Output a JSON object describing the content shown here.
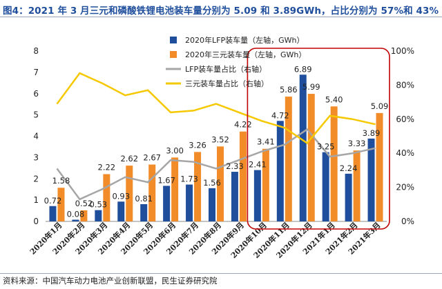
{
  "title": "图4：2021 年 3 月三元和磷酸铁锂电池装车量分别为 5.09 和 3.89GWh，占比分别为 57%和 43%",
  "source": "资料来源：中国汽车动力电池产业创新联盟，民生证券研究院",
  "colors": {
    "lfp_bar": "#1f4e9c",
    "ternary_bar": "#f28c28",
    "lfp_line": "#a6a6a6",
    "ternary_line": "#f5c800",
    "highlight": "#c00000"
  },
  "chart_data": {
    "type": "bar",
    "categories": [
      "2020年1月",
      "2020年2月",
      "2020年3月",
      "2020年4月",
      "2020年5月",
      "2020年6月",
      "2020年7月",
      "2020年8月",
      "2020年9月",
      "2020年10月",
      "2020年11月",
      "2020年12月",
      "2021年1月",
      "2021年2月",
      "2021年3月"
    ],
    "series": [
      {
        "name": "2020年LFP装车量（左轴，GWh）",
        "axis": "left",
        "kind": "bar",
        "values": [
          0.72,
          0.08,
          0.53,
          0.93,
          0.81,
          1.67,
          1.73,
          1.56,
          2.33,
          2.41,
          4.72,
          6.89,
          3.25,
          2.24,
          3.89
        ],
        "labels": [
          "0.72",
          "0.08",
          "0.53",
          "0.93",
          "0.81",
          "1.67",
          "1.73",
          "1.56",
          "2.33",
          "2.41",
          "4.72",
          "6.89",
          "3.25",
          "2.24",
          "3.89"
        ]
      },
      {
        "name": "2020年三元装车量（左轴，GWh）",
        "axis": "left",
        "kind": "bar",
        "values": [
          1.58,
          0.52,
          2.22,
          2.62,
          2.67,
          3.0,
          3.26,
          3.52,
          4.22,
          3.41,
          5.86,
          5.99,
          5.4,
          3.33,
          5.09
        ],
        "labels": [
          "1.58",
          "0.52",
          "2.22",
          "2.62",
          "2.67",
          "3.00",
          "3.26",
          "3.52",
          "4.22",
          "3.41",
          "5.86",
          "5.99",
          "5.40",
          "3.33",
          "5.09"
        ]
      },
      {
        "name": "LFP装车量占比（右轴）",
        "axis": "right",
        "kind": "line",
        "values": [
          31,
          13,
          19,
          26,
          23,
          36,
          35,
          31,
          36,
          41,
          45,
          54,
          38,
          40,
          43
        ]
      },
      {
        "name": "三元装车量占比（右轴）",
        "axis": "right",
        "kind": "line",
        "values": [
          69,
          87,
          81,
          74,
          77,
          64,
          65,
          69,
          64,
          59,
          55,
          46,
          62,
          60,
          57
        ]
      }
    ],
    "y_left": {
      "min": 0,
      "max": 8,
      "ticks": [
        "0",
        "1",
        "2",
        "3",
        "4",
        "5",
        "6",
        "7",
        "8"
      ]
    },
    "y_right": {
      "min": 0,
      "max": 100,
      "ticks": [
        "0%",
        "20%",
        "40%",
        "60%",
        "80%",
        "100%"
      ]
    },
    "legend_position": "top-center",
    "highlight_range": [
      "2020年10月",
      "2021年3月"
    ]
  }
}
